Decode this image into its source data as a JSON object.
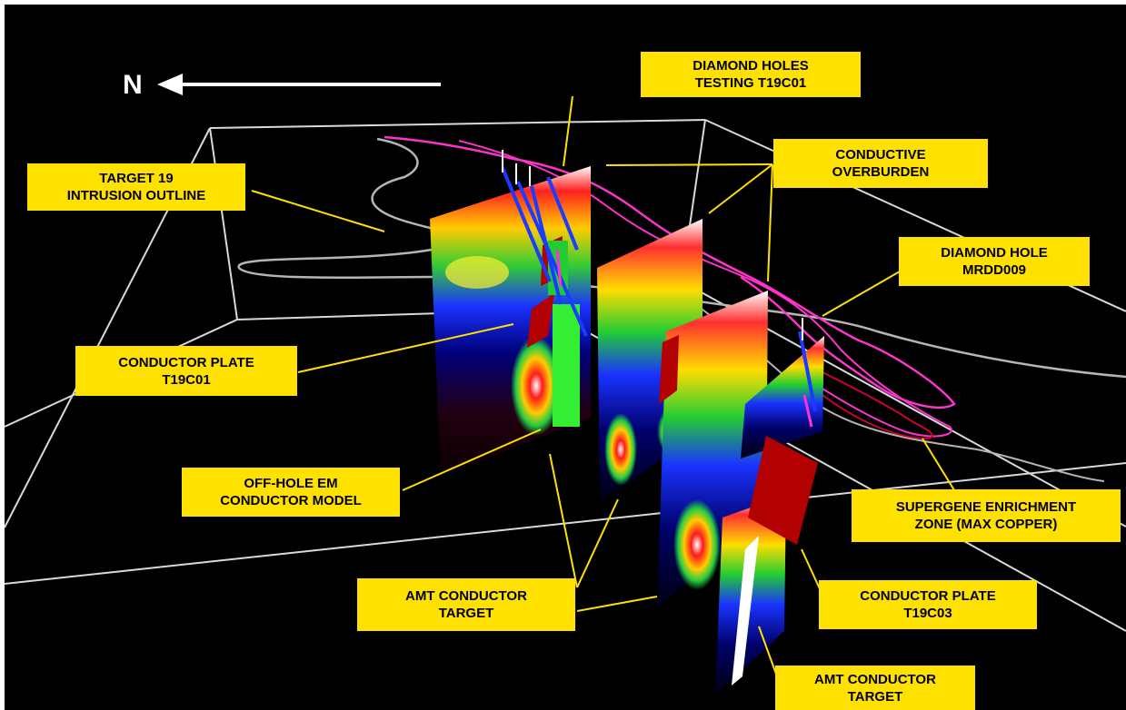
{
  "north_arrow": {
    "label": "N"
  },
  "colors": {
    "background": "#000000",
    "label_fill": "#ffe100",
    "label_text": "#000000",
    "leader_lines": "#ffe100",
    "outline": "#d9d9d9",
    "overburden_trace": "#ff33cc",
    "conductor_plate": "#b30000",
    "em_model": "#33ff33",
    "drill_holes": "#1a3cff"
  },
  "labels": {
    "diamond_holes": [
      "DIAMOND HOLES",
      "TESTING T19C01"
    ],
    "target19": [
      "TARGET 19",
      "INTRUSION OUTLINE"
    ],
    "conductive_overburden": [
      "CONDUCTIVE",
      "OVERBURDEN"
    ],
    "diamond_hole_mrdd009": [
      "DIAMOND HOLE",
      "MRDD009"
    ],
    "conductor_plate_t19c01": [
      "CONDUCTOR PLATE",
      "T19C01"
    ],
    "off_hole_em": [
      "OFF-HOLE EM",
      "CONDUCTOR MODEL"
    ],
    "supergene": [
      "SUPERGENE ENRICHMENT",
      "ZONE (MAX COPPER)"
    ],
    "amt_target_1": [
      "AMT CONDUCTOR",
      "TARGET"
    ],
    "conductor_plate_t19c03": [
      "CONDUCTOR PLATE",
      "T19C03"
    ],
    "amt_target_2": [
      "AMT CONDUCTOR",
      "TARGET"
    ]
  }
}
